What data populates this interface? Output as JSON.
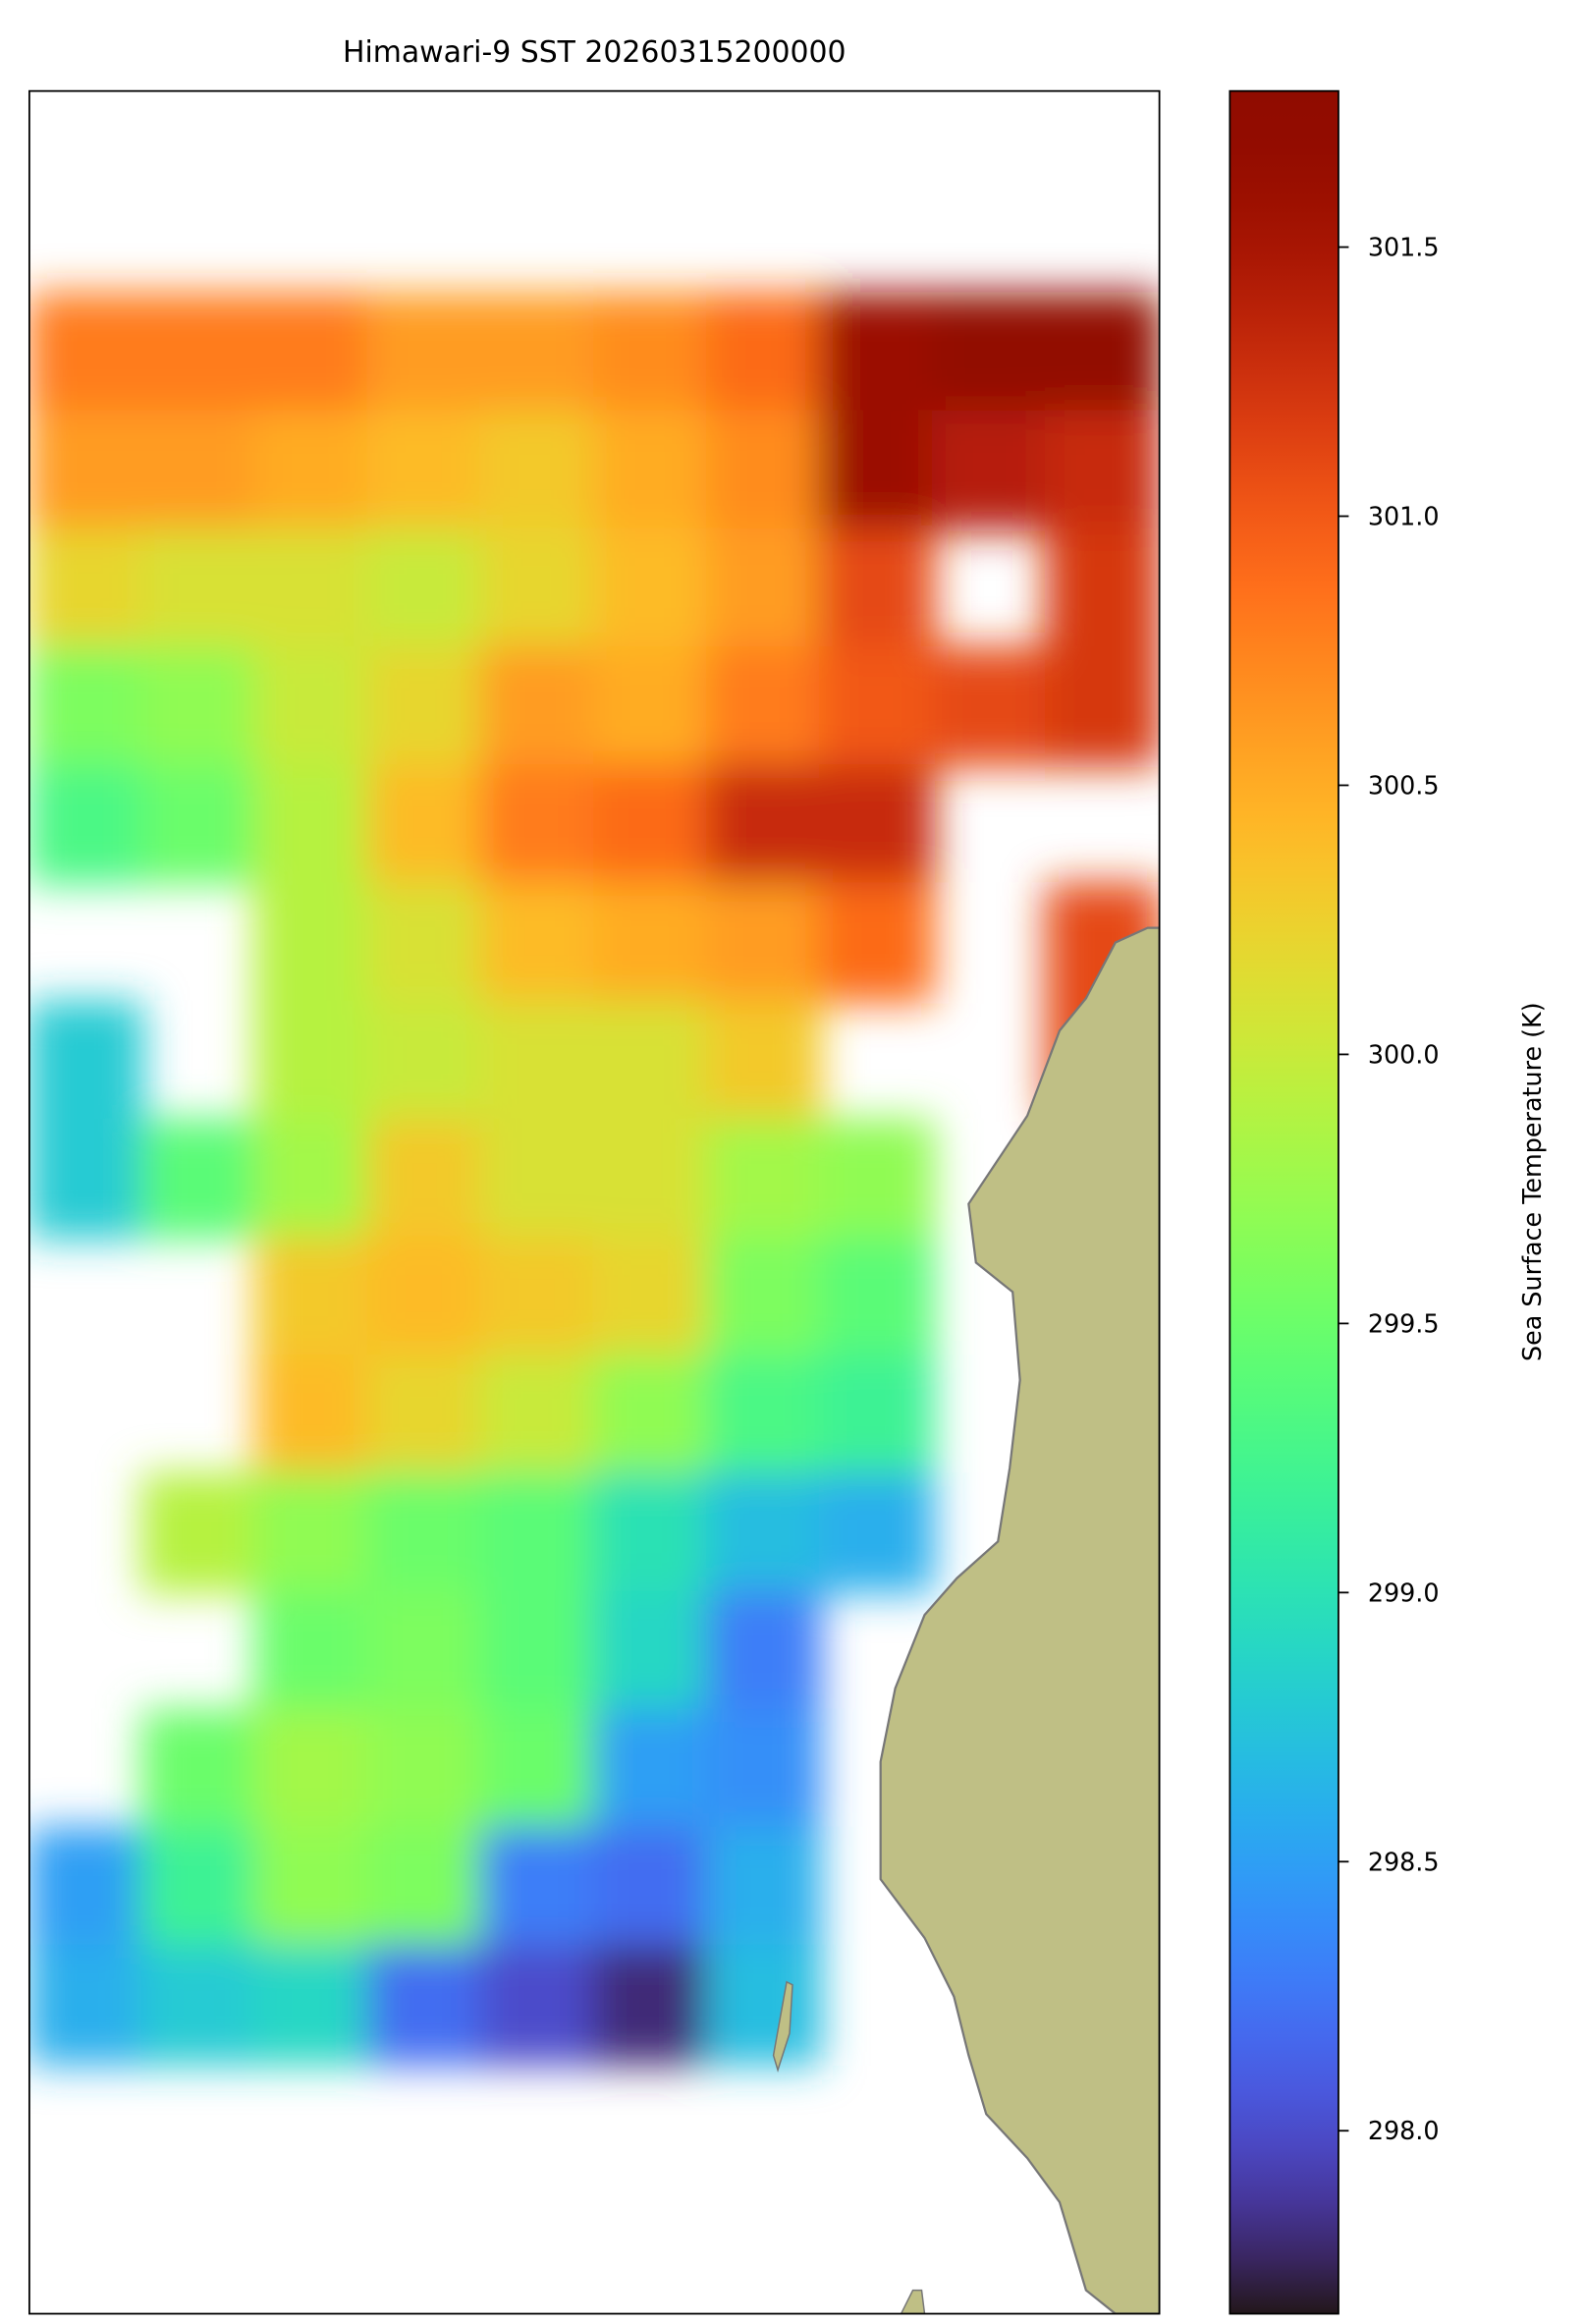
{
  "chart_data": {
    "type": "heatmap",
    "title": "Himawari-9 SST 20260315200000",
    "colorbar_label": "Sea Surface Temperature (K)",
    "colormap": "turbo",
    "clim": [
      297.66,
      301.79
    ],
    "cticks": [
      {
        "value": 298,
        "label": "298.0"
      },
      298.5,
      {
        "value": 299,
        "label": "299.0"
      },
      299.5,
      {
        "value": 300,
        "label": "300.0"
      },
      300.5,
      {
        "value": 301,
        "label": "301.0"
      },
      301.5
    ],
    "z": [
      [
        300.8,
        300.8,
        300.8,
        300.6,
        300.6,
        300.7,
        300.9,
        301.6,
        301.7,
        301.7
      ],
      [
        300.6,
        300.6,
        300.5,
        300.4,
        300.3,
        300.5,
        300.7,
        301.6,
        301.4,
        301.3
      ],
      [
        300.2,
        300.1,
        300.1,
        300.0,
        300.2,
        300.4,
        300.6,
        301.1,
        null,
        301.2
      ],
      [
        299.6,
        299.7,
        300.0,
        300.2,
        300.6,
        300.5,
        300.8,
        301.0,
        301.1,
        301.2
      ],
      [
        299.3,
        299.5,
        299.9,
        300.4,
        300.8,
        300.9,
        301.3,
        301.3,
        null,
        null
      ],
      [
        null,
        null,
        299.9,
        300.1,
        300.4,
        300.5,
        300.6,
        300.9,
        null,
        301.1
      ],
      [
        298.8,
        null,
        299.9,
        300.0,
        300.1,
        300.1,
        300.3,
        null,
        null,
        301.1
      ],
      [
        298.8,
        299.4,
        299.8,
        300.3,
        300.1,
        300.1,
        299.8,
        299.7,
        null,
        null
      ],
      [
        null,
        null,
        300.3,
        300.4,
        300.3,
        300.2,
        299.6,
        299.4,
        null,
        null
      ],
      [
        null,
        null,
        300.4,
        300.2,
        300.0,
        299.7,
        299.3,
        299.2,
        null,
        null
      ],
      [
        null,
        299.9,
        299.7,
        299.5,
        299.4,
        299.0,
        298.7,
        298.6,
        null,
        null
      ],
      [
        null,
        null,
        299.5,
        299.6,
        299.4,
        298.9,
        298.3,
        null,
        null,
        null
      ],
      [
        null,
        299.5,
        299.8,
        299.7,
        299.5,
        298.5,
        298.4,
        null,
        null,
        null
      ],
      [
        298.5,
        299.2,
        299.7,
        299.6,
        298.3,
        298.2,
        298.6,
        null,
        null,
        null
      ],
      [
        298.6,
        298.8,
        298.9,
        298.2,
        298.0,
        297.8,
        298.7,
        null,
        null,
        null
      ]
    ]
  }
}
